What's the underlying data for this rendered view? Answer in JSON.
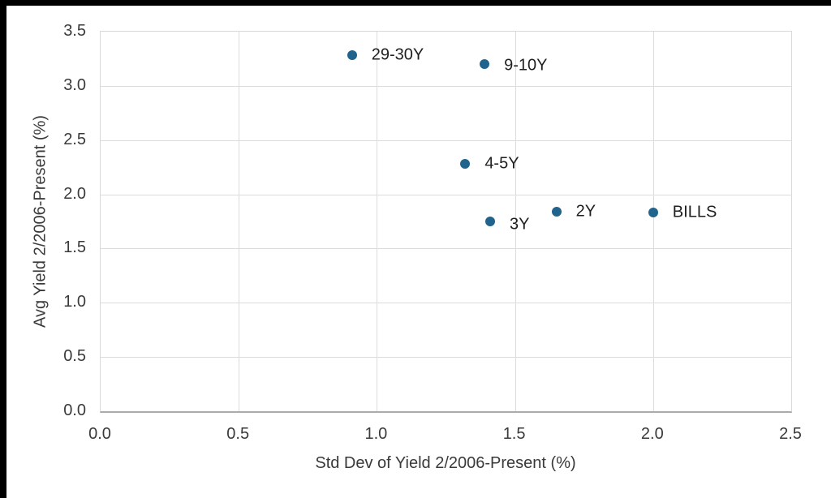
{
  "screen": {
    "bezel_color": "#000000",
    "background_color": "#ffffff"
  },
  "chart_data": {
    "type": "scatter",
    "title": "",
    "xlabel": "Std Dev of Yield 2/2006-Present (%)",
    "ylabel": "Avg Yield 2/2006-Present (%)",
    "xlim": [
      0.0,
      2.5
    ],
    "ylim": [
      0.0,
      3.5
    ],
    "x_ticks": [
      "0.0",
      "0.5",
      "1.0",
      "1.5",
      "2.0",
      "2.5"
    ],
    "y_ticks": [
      "0.0",
      "0.5",
      "1.0",
      "1.5",
      "2.0",
      "2.5",
      "3.0",
      "3.5"
    ],
    "grid": true,
    "legend": false,
    "colors": {
      "marker": "#20648e",
      "gridline": "#dcdcdc",
      "axis_line": "#ababab",
      "plot_border": "#d9d9d9",
      "tick_text": "#3a3a3a",
      "point_label_text": "#1f1f1f"
    },
    "points": [
      {
        "label": "29-30Y",
        "x": 0.91,
        "y": 3.28,
        "label_dy": 0
      },
      {
        "label": "9-10Y",
        "x": 1.39,
        "y": 3.2,
        "label_dy": 2
      },
      {
        "label": "4-5Y",
        "x": 1.32,
        "y": 2.28,
        "label_dy": 0
      },
      {
        "label": "3Y",
        "x": 1.41,
        "y": 1.75,
        "label_dy": 4
      },
      {
        "label": "2Y",
        "x": 1.65,
        "y": 1.84,
        "label_dy": 0
      },
      {
        "label": "BILLS",
        "x": 2.0,
        "y": 1.83,
        "label_dy": 0
      }
    ]
  }
}
